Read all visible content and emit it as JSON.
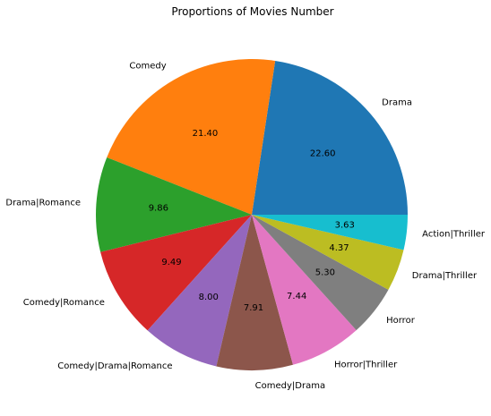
{
  "chart_data": {
    "type": "pie",
    "title": "Proportions of Movies Number",
    "categories": [
      "Drama",
      "Comedy",
      "Drama|Romance",
      "Comedy|Romance",
      "Comedy|Drama|Romance",
      "Comedy|Drama",
      "Horror|Thriller",
      "Horror",
      "Drama|Thriller",
      "Action|Thriller"
    ],
    "values": [
      22.6,
      21.4,
      9.86,
      9.49,
      8.0,
      7.91,
      7.44,
      5.3,
      4.37,
      3.63
    ],
    "value_labels": [
      "22.60",
      "21.40",
      "9.86",
      "9.49",
      "8.00",
      "7.91",
      "7.44",
      "5.30",
      "4.37",
      "3.63"
    ],
    "colors": [
      "#1f77b4",
      "#ff7f0e",
      "#2ca02c",
      "#d62728",
      "#9467bd",
      "#8c564b",
      "#e377c2",
      "#7f7f7f",
      "#bcbd22",
      "#17becf"
    ],
    "start_angle_deg": 0,
    "direction": "counterclockwise"
  }
}
